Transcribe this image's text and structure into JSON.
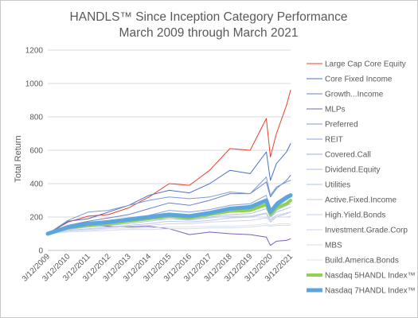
{
  "chart_data": {
    "type": "line",
    "title": "HANDLS™ Since Inception Category Performance",
    "subtitle": "March 2009 through March 2021",
    "ylabel": "Total Return",
    "xlabel": "",
    "ylim": [
      0,
      1200
    ],
    "y_ticks": [
      0,
      200,
      400,
      600,
      800,
      1000,
      1200
    ],
    "x_ticks": [
      "3/12/2009",
      "3/12/2010",
      "3/12/2011",
      "3/12/2012",
      "3/12/2013",
      "3/12/2014",
      "3/12/2015",
      "3/12/2016",
      "3/12/2017",
      "3/12/2018",
      "3/12/2019",
      "3/12/2020",
      "3/12/2021"
    ],
    "grid": "horizontal",
    "legend_position": "right",
    "x": [
      2009.2,
      2010.2,
      2011.2,
      2012.2,
      2013.2,
      2014.2,
      2015.2,
      2016.2,
      2017.2,
      2018.2,
      2019.2,
      2020.0,
      2020.2,
      2020.5,
      2021.0,
      2021.2
    ],
    "series": [
      {
        "name": "Large Cap Core Equity",
        "color": "#e8402c",
        "width": 1,
        "values": [
          100,
          170,
          205,
          215,
          255,
          320,
          400,
          390,
          480,
          610,
          600,
          790,
          560,
          700,
          870,
          960
        ]
      },
      {
        "name": "Core Fixed Income",
        "color": "#4d6fc4",
        "width": 1,
        "values": [
          100,
          175,
          190,
          230,
          270,
          330,
          360,
          345,
          400,
          480,
          460,
          590,
          420,
          520,
          590,
          640
        ]
      },
      {
        "name": "Growth...Income",
        "color": "#6b82cc",
        "width": 1,
        "values": [
          100,
          150,
          175,
          195,
          215,
          250,
          285,
          270,
          300,
          340,
          340,
          410,
          320,
          370,
          420,
          450
        ]
      },
      {
        "name": "MLPs",
        "color": "#7d5fb8",
        "width": 1,
        "values": [
          100,
          140,
          150,
          145,
          140,
          145,
          130,
          95,
          110,
          100,
          95,
          80,
          30,
          55,
          60,
          70
        ]
      },
      {
        "name": "Preferred",
        "color": "#7b9ad6",
        "width": 1,
        "values": [
          100,
          180,
          230,
          240,
          270,
          300,
          320,
          310,
          320,
          350,
          340,
          440,
          330,
          380,
          410,
          420
        ]
      },
      {
        "name": "REIT",
        "color": "#8aa3dc",
        "width": 1,
        "values": [
          100,
          140,
          160,
          180,
          195,
          210,
          240,
          230,
          245,
          270,
          280,
          330,
          230,
          290,
          330,
          340
        ]
      },
      {
        "name": "Covered.Call",
        "color": "#9aaee0",
        "width": 1,
        "values": [
          100,
          135,
          150,
          165,
          180,
          200,
          220,
          210,
          230,
          250,
          250,
          280,
          200,
          250,
          280,
          290
        ]
      },
      {
        "name": "Dividend.Equity",
        "color": "#a9bbe5",
        "width": 1,
        "values": [
          100,
          130,
          145,
          155,
          170,
          190,
          205,
          200,
          215,
          235,
          240,
          270,
          200,
          240,
          270,
          280
        ]
      },
      {
        "name": "Utilities",
        "color": "#b3c3e8",
        "width": 1,
        "values": [
          100,
          125,
          140,
          150,
          160,
          175,
          190,
          185,
          200,
          215,
          220,
          250,
          200,
          230,
          250,
          260
        ]
      },
      {
        "name": "Active.Fixed.Income",
        "color": "#bcc9ea",
        "width": 1,
        "values": [
          100,
          120,
          130,
          140,
          150,
          160,
          175,
          170,
          180,
          195,
          200,
          220,
          170,
          200,
          220,
          230
        ]
      },
      {
        "name": "High.Yield.Bonds",
        "color": "#c4cfec",
        "width": 1,
        "values": [
          100,
          125,
          140,
          155,
          170,
          185,
          190,
          180,
          195,
          205,
          205,
          225,
          185,
          210,
          225,
          230
        ]
      },
      {
        "name": "Investment.Grade.Corp",
        "color": "#cdd6ef",
        "width": 1,
        "values": [
          100,
          115,
          125,
          135,
          145,
          150,
          160,
          160,
          170,
          175,
          180,
          195,
          180,
          200,
          200,
          205
        ]
      },
      {
        "name": "MBS",
        "color": "#d5dcf1",
        "width": 1,
        "values": [
          100,
          110,
          115,
          120,
          125,
          125,
          130,
          130,
          135,
          135,
          140,
          150,
          145,
          150,
          150,
          150
        ]
      },
      {
        "name": "Build.America.Bonds",
        "color": "#dde2f3",
        "width": 1,
        "values": [
          100,
          110,
          118,
          130,
          130,
          135,
          140,
          140,
          145,
          145,
          150,
          160,
          150,
          158,
          160,
          160
        ]
      },
      {
        "name": "Nasdaq 5HANDL Index™",
        "color": "#92d050",
        "width": 4,
        "values": [
          100,
          135,
          150,
          160,
          175,
          190,
          205,
          195,
          215,
          235,
          240,
          275,
          215,
          255,
          280,
          300
        ]
      },
      {
        "name": "Nasdaq 7HANDL Index™",
        "color": "#5aa6dd",
        "width": 5,
        "values": [
          100,
          140,
          160,
          170,
          185,
          200,
          215,
          205,
          225,
          250,
          260,
          300,
          230,
          275,
          315,
          330
        ]
      }
    ]
  }
}
